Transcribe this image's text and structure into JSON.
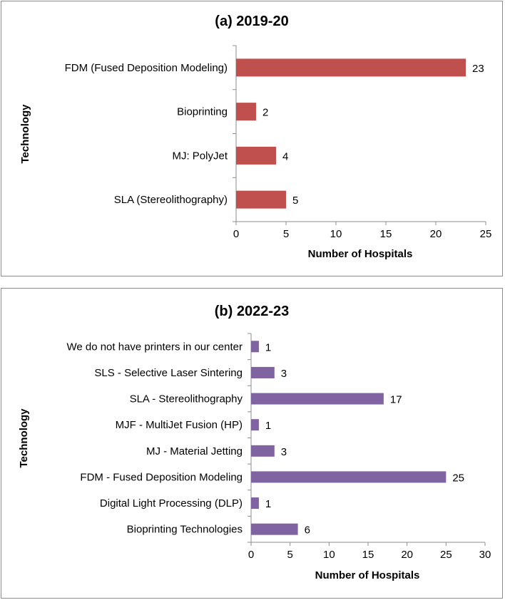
{
  "chart_data": [
    {
      "type": "bar",
      "orientation": "horizontal",
      "title": "(a) 2019-20",
      "xlabel": "Number of Hospitals",
      "ylabel": "Technology",
      "categories": [
        "FDM (Fused Deposition Modeling)",
        "Bioprinting",
        "MJ: PolyJet",
        "SLA (Stereolithography)"
      ],
      "values": [
        23,
        2,
        4,
        5
      ],
      "xlim": [
        0,
        25
      ],
      "xticks": [
        0,
        5,
        10,
        15,
        20,
        25
      ],
      "bar_color": "#c0504d",
      "grid": false,
      "legend": "none"
    },
    {
      "type": "bar",
      "orientation": "horizontal",
      "title": "(b) 2022-23",
      "xlabel": "Number of Hospitals",
      "ylabel": "Technology",
      "categories": [
        "We do not have printers in our center",
        "SLS - Selective Laser Sintering",
        "SLA - Stereolithography",
        "MJF - MultiJet Fusion (HP)",
        "MJ - Material Jetting",
        "FDM - Fused Deposition Modeling",
        "Digital Light Processing (DLP)",
        "Bioprinting Technologies"
      ],
      "values": [
        1,
        3,
        17,
        1,
        3,
        25,
        1,
        6
      ],
      "xlim": [
        0,
        30
      ],
      "xticks": [
        0,
        5,
        10,
        15,
        20,
        25,
        30
      ],
      "bar_color": "#8064a2",
      "grid": false,
      "legend": "none"
    }
  ]
}
